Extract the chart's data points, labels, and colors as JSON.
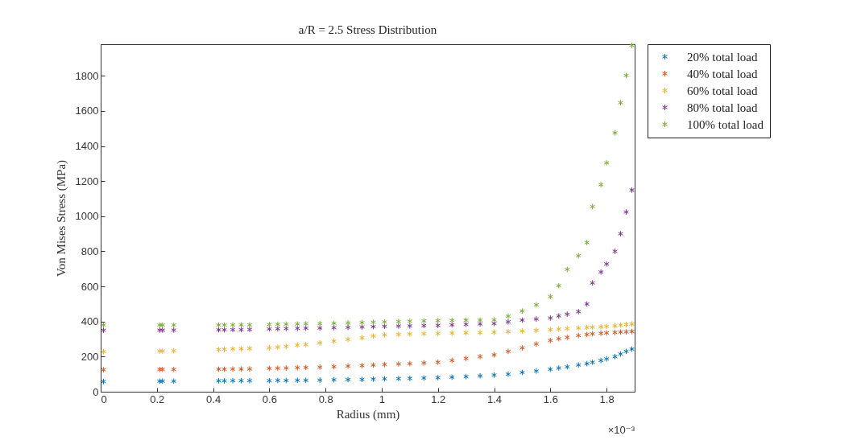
{
  "chart_data": {
    "type": "scatter",
    "title": "a/R = 2.5 Stress Distribution",
    "xlabel": "Radius (mm)",
    "ylabel": "Von Mises Stress (MPa)",
    "annotations": [
      "×10⁻³"
    ],
    "x": [
      0.01,
      0.21,
      0.22,
      0.26,
      0.42,
      0.44,
      0.47,
      0.5,
      0.53,
      0.6,
      0.63,
      0.66,
      0.7,
      0.73,
      0.78,
      0.83,
      0.88,
      0.93,
      0.97,
      1.01,
      1.06,
      1.1,
      1.15,
      1.2,
      1.25,
      1.3,
      1.35,
      1.4,
      1.45,
      1.5,
      1.55,
      1.6,
      1.63,
      1.66,
      1.7,
      1.73,
      1.75,
      1.78,
      1.8,
      1.83,
      1.85,
      1.87,
      1.89
    ],
    "series": [
      {
        "name": "20% total load",
        "color": "#0072bd",
        "values": [
          58,
          60,
          60,
          60,
          62,
          62,
          63,
          63,
          63,
          63,
          64,
          64,
          65,
          65,
          66,
          68,
          69,
          70,
          72,
          74,
          75,
          76,
          78,
          80,
          83,
          86,
          90,
          95,
          100,
          110,
          118,
          128,
          135,
          142,
          152,
          160,
          168,
          178,
          187,
          200,
          215,
          230,
          243
        ]
      },
      {
        "name": "40% total load",
        "color": "#d95319",
        "values": [
          125,
          127,
          127,
          127,
          128,
          128,
          129,
          129,
          130,
          133,
          134,
          135,
          137,
          138,
          140,
          143,
          146,
          149,
          152,
          155,
          158,
          160,
          164,
          168,
          178,
          190,
          200,
          210,
          230,
          250,
          272,
          292,
          302,
          310,
          320,
          326,
          330,
          333,
          335,
          338,
          340,
          341,
          343
        ]
      },
      {
        "name": "60% total load",
        "color": "#edb120",
        "values": [
          228,
          232,
          232,
          233,
          240,
          242,
          244,
          245,
          246,
          250,
          254,
          258,
          265,
          268,
          278,
          288,
          298,
          308,
          318,
          324,
          327,
          329,
          331,
          332,
          334,
          336,
          337,
          339,
          342,
          346,
          350,
          354,
          357,
          360,
          363,
          366,
          368,
          370,
          372,
          376,
          380,
          383,
          386
        ]
      },
      {
        "name": "80% total load",
        "color": "#7e2f8e",
        "values": [
          350,
          351,
          351,
          351,
          353,
          353,
          354,
          354,
          355,
          358,
          359,
          360,
          361,
          362,
          363,
          365,
          367,
          369,
          371,
          373,
          374,
          375,
          377,
          378,
          381,
          384,
          386,
          389,
          398,
          408,
          414,
          420,
          432,
          442,
          456,
          500,
          620,
          682,
          728,
          800,
          900,
          1024,
          1149
        ]
      },
      {
        "name": "100% total load",
        "color": "#77ac30",
        "values": [
          380,
          380,
          380,
          380,
          380,
          380,
          381,
          381,
          381,
          383,
          384,
          385,
          386,
          387,
          388,
          390,
          392,
          394,
          396,
          398,
          400,
          402,
          404,
          405,
          406,
          407,
          408,
          409,
          430,
          460,
          495,
          542,
          604,
          697,
          775,
          850,
          1055,
          1180,
          1304,
          1475,
          1647,
          1802,
          1974
        ]
      }
    ],
    "xlim": [
      0,
      1.9
    ],
    "xticks": [
      0,
      0.2,
      0.4,
      0.6,
      0.8,
      1,
      1.2,
      1.4,
      1.6,
      1.8
    ],
    "ylim": [
      0,
      1980
    ],
    "yticks": [
      0,
      200,
      400,
      600,
      800,
      1000,
      1200,
      1400,
      1600,
      1800
    ],
    "legend": "right",
    "marker": "cross",
    "grid": false
  }
}
